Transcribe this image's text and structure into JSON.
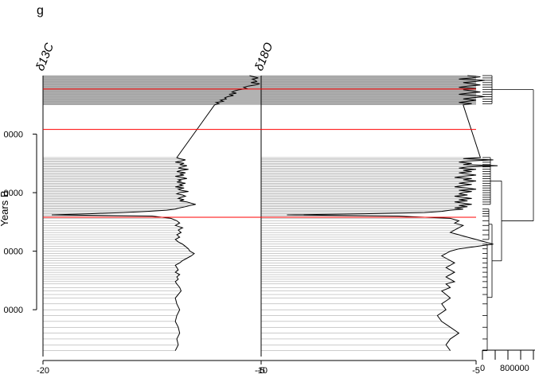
{
  "header": {
    "partial_text": "g"
  },
  "chart_data": {
    "type": "line",
    "description_ylabel": "Years BP",
    "ylabel": "Years B",
    "y_axis": {
      "range": [
        0,
        4800
      ],
      "tick_values": [
        1000,
        2000,
        3000,
        4000
      ],
      "tick_labels": [
        "0000",
        "0000",
        "0000",
        "0000"
      ],
      "reversed": true
    },
    "panels": [
      {
        "name": "d13c",
        "title": "δ13C",
        "xlim": [
          -20,
          -5
        ],
        "x_ticks": [
          -20,
          -5
        ],
        "x_tick_labels": [
          "-20",
          "-5"
        ],
        "depth": [
          0,
          20,
          40,
          60,
          80,
          100,
          120,
          140,
          160,
          180,
          200,
          220,
          240,
          260,
          280,
          300,
          320,
          340,
          360,
          380,
          400,
          420,
          440,
          460,
          480,
          500,
          1400,
          1420,
          1440,
          1460,
          1480,
          1500,
          1520,
          1540,
          1560,
          1580,
          1600,
          1620,
          1640,
          1660,
          1680,
          1700,
          1720,
          1740,
          1760,
          1780,
          1800,
          1820,
          1840,
          1860,
          1880,
          1900,
          1920,
          1940,
          1960,
          1980,
          2000,
          2020,
          2040,
          2060,
          2080,
          2100,
          2120,
          2140,
          2160,
          2180,
          2200,
          2220,
          2240,
          2260,
          2280,
          2300,
          2320,
          2340,
          2360,
          2380,
          2400,
          2440,
          2480,
          2520,
          2560,
          2600,
          2640,
          2680,
          2720,
          2760,
          2800,
          2840,
          2880,
          2920,
          2960,
          3000,
          3040,
          3080,
          3120,
          3160,
          3200,
          3240,
          3280,
          3320,
          3360,
          3400,
          3440,
          3480,
          3520,
          3560,
          3620,
          3680,
          3740,
          3800,
          3900,
          4000,
          4100,
          4200,
          4300,
          4400,
          4500,
          4600,
          4700
        ],
        "values": [
          -5.8,
          -5.5,
          -5.2,
          -5.6,
          -5.4,
          -5.3,
          -5.7,
          -5.1,
          -5.4,
          -5.9,
          -6.2,
          -6.0,
          -6.5,
          -6.8,
          -7.0,
          -6.7,
          -7.2,
          -6.9,
          -7.3,
          -7.5,
          -7.4,
          -7.8,
          -7.6,
          -8.1,
          -7.9,
          -8.2,
          -10.8,
          -10.6,
          -10.2,
          -10.5,
          -10.9,
          -10.3,
          -10.6,
          -10.1,
          -10.4,
          -10.7,
          -10.0,
          -10.5,
          -10.8,
          -10.2,
          -10.6,
          -10.3,
          -10.9,
          -10.4,
          -10.1,
          -10.7,
          -10.5,
          -10.8,
          -10.2,
          -10.6,
          -10.4,
          -10.9,
          -10.3,
          -10.7,
          -10.5,
          -10.0,
          -10.6,
          -10.8,
          -10.4,
          -10.2,
          -10.5,
          -10.7,
          -10.3,
          -10.6,
          -10.1,
          -9.8,
          -9.5,
          -9.9,
          -10.2,
          -10.6,
          -10.9,
          -11.5,
          -12.8,
          -14.5,
          -16.8,
          -19.4,
          -12.5,
          -11.2,
          -10.8,
          -10.6,
          -10.9,
          -10.4,
          -10.7,
          -10.5,
          -10.8,
          -10.6,
          -10.9,
          -10.7,
          -10.4,
          -10.2,
          -10.0,
          -9.9,
          -9.6,
          -9.8,
          -10.1,
          -10.4,
          -10.6,
          -10.9,
          -10.8,
          -10.7,
          -10.9,
          -10.6,
          -10.8,
          -10.7,
          -10.9,
          -10.8,
          -10.6,
          -10.5,
          -10.7,
          -10.9,
          -10.8,
          -10.6,
          -10.8,
          -10.9,
          -10.7,
          -10.6,
          -10.8,
          -10.7,
          -10.9
        ]
      },
      {
        "name": "d18o",
        "title": "δ18O",
        "xlim": [
          -10,
          -5
        ],
        "x_ticks": [
          -10,
          -5
        ],
        "x_tick_labels": [
          "-10",
          "-5"
        ],
        "depth": [
          0,
          20,
          40,
          60,
          80,
          100,
          120,
          140,
          160,
          180,
          200,
          220,
          240,
          260,
          280,
          300,
          320,
          340,
          360,
          380,
          400,
          420,
          440,
          460,
          480,
          500,
          1400,
          1420,
          1440,
          1460,
          1480,
          1500,
          1520,
          1540,
          1560,
          1580,
          1600,
          1620,
          1640,
          1660,
          1680,
          1700,
          1720,
          1740,
          1760,
          1780,
          1800,
          1820,
          1840,
          1860,
          1880,
          1900,
          1920,
          1940,
          1960,
          1980,
          2000,
          2020,
          2040,
          2060,
          2080,
          2100,
          2120,
          2140,
          2160,
          2180,
          2200,
          2220,
          2240,
          2260,
          2280,
          2300,
          2320,
          2340,
          2360,
          2380,
          2400,
          2440,
          2480,
          2520,
          2560,
          2600,
          2640,
          2680,
          2720,
          2760,
          2800,
          2840,
          2880,
          2920,
          2960,
          3000,
          3040,
          3080,
          3120,
          3160,
          3200,
          3240,
          3280,
          3320,
          3360,
          3400,
          3440,
          3480,
          3520,
          3560,
          3620,
          3680,
          3740,
          3800,
          3900,
          4000,
          4100,
          4200,
          4300,
          4400,
          4500,
          4600,
          4700
        ],
        "values": [
          -5.2,
          -4.9,
          -5.1,
          -5.4,
          -4.8,
          -5.0,
          -5.3,
          -5.1,
          -4.9,
          -5.2,
          -5.4,
          -5.0,
          -5.3,
          -5.1,
          -4.9,
          -5.2,
          -5.4,
          -5.0,
          -4.8,
          -5.1,
          -5.3,
          -5.0,
          -5.2,
          -5.4,
          -5.1,
          -5.3,
          -4.9,
          -5.3,
          -4.6,
          -5.2,
          -5.4,
          -5.1,
          -5.3,
          -4.5,
          -5.2,
          -5.4,
          -5.0,
          -5.3,
          -5.1,
          -5.4,
          -5.2,
          -5.0,
          -5.3,
          -5.5,
          -5.1,
          -5.3,
          -5.0,
          -5.2,
          -5.4,
          -5.1,
          -5.3,
          -5.5,
          -5.2,
          -5.0,
          -5.4,
          -5.1,
          -5.3,
          -5.4,
          -5.2,
          -5.5,
          -5.3,
          -5.1,
          -5.4,
          -5.2,
          -5.5,
          -5.3,
          -5.1,
          -5.4,
          -5.2,
          -5.5,
          -5.3,
          -5.6,
          -5.8,
          -6.2,
          -7.6,
          -9.4,
          -6.8,
          -5.6,
          -5.4,
          -5.5,
          -5.3,
          -5.4,
          -5.5,
          -5.6,
          -5.4,
          -5.2,
          -5.0,
          -4.8,
          -4.6,
          -5.0,
          -5.4,
          -5.6,
          -5.7,
          -5.8,
          -5.7,
          -5.6,
          -5.5,
          -5.6,
          -5.7,
          -5.6,
          -5.5,
          -5.6,
          -5.7,
          -5.6,
          -5.5,
          -5.7,
          -5.6,
          -5.8,
          -5.7,
          -5.6,
          -5.8,
          -5.7,
          -5.9,
          -5.8,
          -5.6,
          -5.4,
          -5.6,
          -5.7,
          -5.6,
          -5.7
        ]
      }
    ],
    "zones": {
      "shaded_depth_range": [
        0,
        500
      ],
      "red_lines_depth": [
        230,
        920,
        2420
      ],
      "fill_color": "#b2b2b2",
      "red_line_color": "#ff0000",
      "tie_line_color": "#999999"
    },
    "cluster_axis": {
      "tick_labels": [
        "0",
        "800000"
      ]
    },
    "grid": false,
    "legend": "none"
  }
}
